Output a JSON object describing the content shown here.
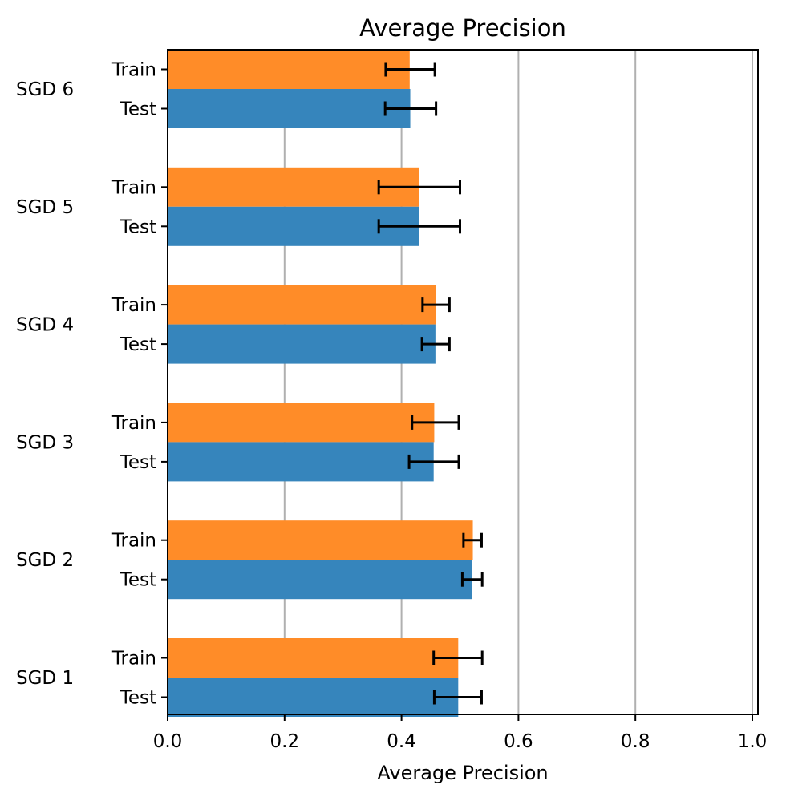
{
  "chart_data": {
    "type": "bar",
    "orientation": "horizontal",
    "title": "Average Precision",
    "xlabel": "Average Precision",
    "ylabel": "",
    "xlim": [
      0.0,
      1.0
    ],
    "xticks": [
      "0.0",
      "0.2",
      "0.4",
      "0.6",
      "0.8",
      "1.0"
    ],
    "grid": "x-axis vertical lines",
    "colors": {
      "Train": "#ff8c28",
      "Test": "#3685bc"
    },
    "groups": [
      {
        "label": "SGD 6",
        "bars": [
          {
            "label": "Train",
            "value": 0.414,
            "err_low": 0.373,
            "err_high": 0.457
          },
          {
            "label": "Test",
            "value": 0.415,
            "err_low": 0.372,
            "err_high": 0.459
          }
        ]
      },
      {
        "label": "SGD 5",
        "bars": [
          {
            "label": "Train",
            "value": 0.43,
            "err_low": 0.361,
            "err_high": 0.5
          },
          {
            "label": "Test",
            "value": 0.43,
            "err_low": 0.361,
            "err_high": 0.5
          }
        ]
      },
      {
        "label": "SGD 4",
        "bars": [
          {
            "label": "Train",
            "value": 0.459,
            "err_low": 0.436,
            "err_high": 0.482
          },
          {
            "label": "Test",
            "value": 0.458,
            "err_low": 0.435,
            "err_high": 0.482
          }
        ]
      },
      {
        "label": "SGD 3",
        "bars": [
          {
            "label": "Train",
            "value": 0.456,
            "err_low": 0.418,
            "err_high": 0.498
          },
          {
            "label": "Test",
            "value": 0.455,
            "err_low": 0.413,
            "err_high": 0.498
          }
        ]
      },
      {
        "label": "SGD 2",
        "bars": [
          {
            "label": "Train",
            "value": 0.522,
            "err_low": 0.506,
            "err_high": 0.537
          },
          {
            "label": "Test",
            "value": 0.521,
            "err_low": 0.504,
            "err_high": 0.538
          }
        ]
      },
      {
        "label": "SGD 1",
        "bars": [
          {
            "label": "Train",
            "value": 0.497,
            "err_low": 0.455,
            "err_high": 0.538
          },
          {
            "label": "Test",
            "value": 0.497,
            "err_low": 0.456,
            "err_high": 0.537
          }
        ]
      }
    ]
  }
}
